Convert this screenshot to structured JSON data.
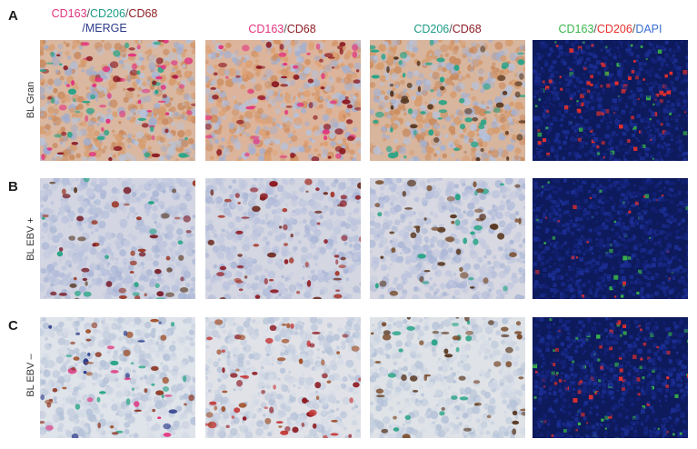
{
  "panels": [
    {
      "letter": "A",
      "row_label": "BL Gran"
    },
    {
      "letter": "B",
      "row_label": "BL EBV +"
    },
    {
      "letter": "C",
      "row_label": "BL EBV –"
    }
  ],
  "headers": {
    "col1": {
      "a": "CD163",
      "s1": "/",
      "b": "CD206",
      "s2": "/",
      "c": "CD68",
      "d": "/MERGE"
    },
    "col2": {
      "a": "CD163",
      "s1": "/",
      "b": "CD68"
    },
    "col3": {
      "a": "CD206",
      "s1": "/",
      "b": "CD68"
    },
    "col4": {
      "a": "CD163",
      "s1": "/",
      "b": "CD206",
      "s2": "/",
      "c": "DAPI"
    }
  },
  "colors": {
    "cd163": "#e2347e",
    "cd206": "#1d9c86",
    "cd68": "#8e1d25",
    "if_cd163": "#39b54a",
    "if_cd206": "#e8302b",
    "dapi": "#3a6fd0"
  }
}
